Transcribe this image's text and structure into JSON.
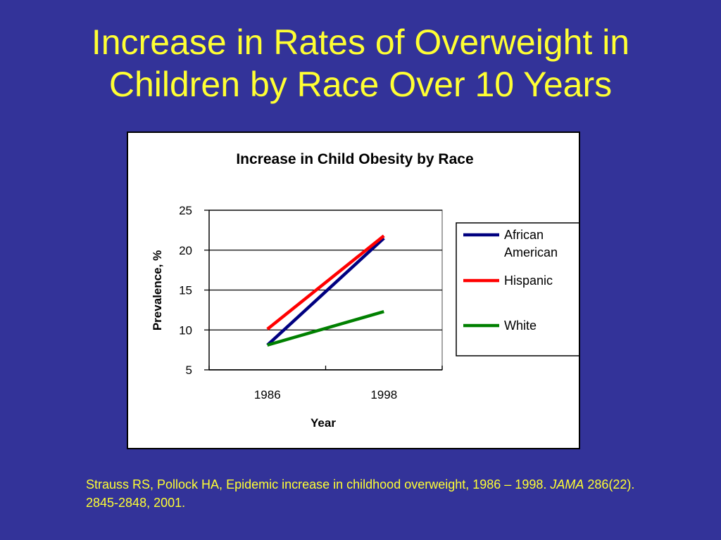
{
  "slide": {
    "title_line1": "Increase in Rates of Overweight in",
    "title_line2": "Children by Race Over 10 Years",
    "citation_part1": "Strauss RS, Pollock HA, Epidemic increase in childhood overweight, 1986 – 1998.  ",
    "citation_journal": "JAMA",
    "citation_part2": " 286(22).  2845-2848, 2001."
  },
  "colors": {
    "background": "#333399",
    "title_text": "#ffff33",
    "african_american": "#000080",
    "hispanic": "#ff0000",
    "white": "#008000"
  },
  "chart_data": {
    "type": "line",
    "title": "Increase in Child Obesity by Race",
    "xlabel": "Year",
    "ylabel": "Prevalence, %",
    "categories": [
      "1986",
      "1998"
    ],
    "ylim": [
      5,
      25
    ],
    "yticks": [
      "5",
      "10",
      "15",
      "20",
      "25"
    ],
    "grid": true,
    "legend_position": "right",
    "series": [
      {
        "name": "African American",
        "legend_lines": [
          "African",
          "American"
        ],
        "values": [
          8.1,
          21.5
        ],
        "color": "#000080"
      },
      {
        "name": "Hispanic",
        "legend_lines": [
          "Hispanic"
        ],
        "values": [
          10.1,
          21.8
        ],
        "color": "#ff0000"
      },
      {
        "name": "White",
        "legend_lines": [
          "White"
        ],
        "values": [
          8.1,
          12.3
        ],
        "color": "#008000"
      }
    ]
  }
}
